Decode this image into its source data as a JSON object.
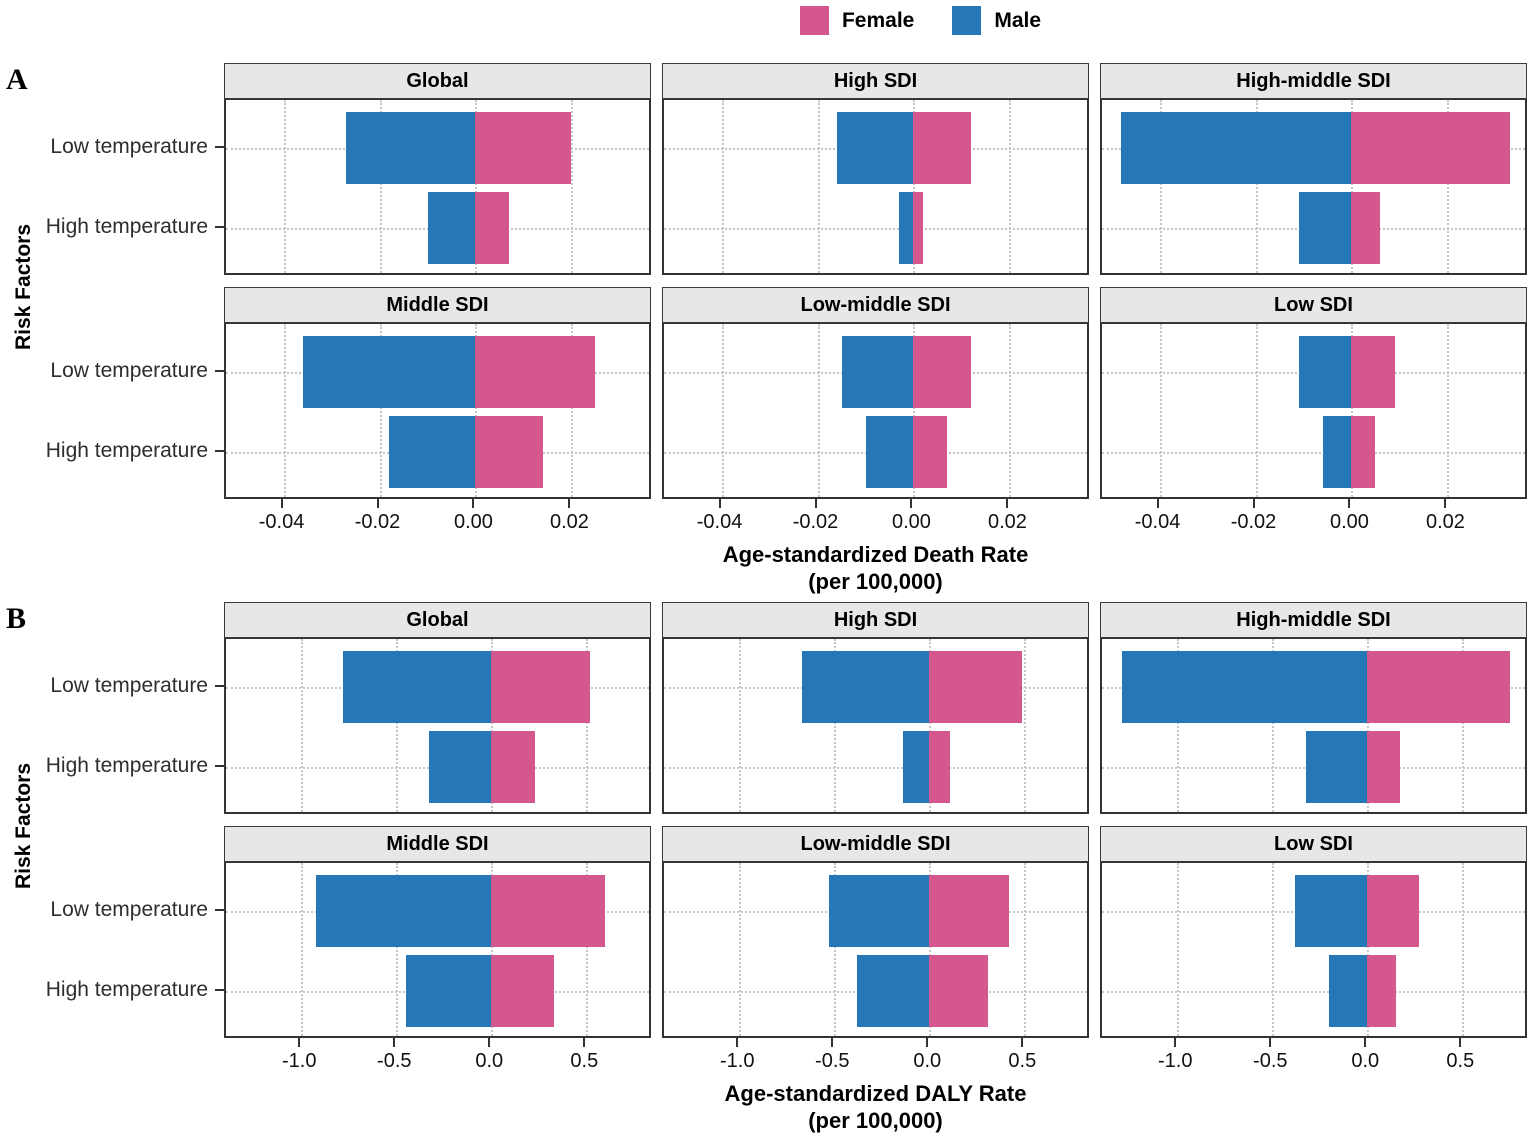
{
  "figure": {
    "background": "#ffffff",
    "legend": {
      "position": "top",
      "items": [
        {
          "label": "Female",
          "color": "#d4578d"
        },
        {
          "label": "Male",
          "color": "#2577b7"
        }
      ]
    }
  },
  "chart_data": [
    {
      "type": "bar",
      "orientation": "horizontal-diverging",
      "panel_letter": "A",
      "ylabel": "Risk Factors",
      "xlabel": [
        "Age-standardized Death Rate",
        "(per 100,000)"
      ],
      "categories": [
        "Low temperature",
        "High temperature"
      ],
      "xlim": [
        -0.052,
        0.037
      ],
      "grid": "dotted",
      "legend_position": "top",
      "xticks": [
        {
          "value": -0.04,
          "label": "-0.04"
        },
        {
          "value": -0.02,
          "label": "-0.02"
        },
        {
          "value": 0.0,
          "label": "0.00"
        },
        {
          "value": 0.02,
          "label": "0.02"
        }
      ],
      "facets": [
        {
          "title": "Global",
          "series": [
            {
              "name": "Male",
              "values": [
                -0.027,
                -0.01
              ]
            },
            {
              "name": "Female",
              "values": [
                0.02,
                0.007
              ]
            }
          ]
        },
        {
          "title": "High SDI",
          "series": [
            {
              "name": "Male",
              "values": [
                -0.016,
                -0.003
              ]
            },
            {
              "name": "Female",
              "values": [
                0.012,
                0.002
              ]
            }
          ]
        },
        {
          "title": "High-middle SDI",
          "series": [
            {
              "name": "Male",
              "values": [
                -0.048,
                -0.011
              ]
            },
            {
              "name": "Female",
              "values": [
                0.033,
                0.006
              ]
            }
          ]
        },
        {
          "title": "Middle SDI",
          "series": [
            {
              "name": "Male",
              "values": [
                -0.036,
                -0.018
              ]
            },
            {
              "name": "Female",
              "values": [
                0.025,
                0.014
              ]
            }
          ]
        },
        {
          "title": "Low-middle SDI",
          "series": [
            {
              "name": "Male",
              "values": [
                -0.015,
                -0.01
              ]
            },
            {
              "name": "Female",
              "values": [
                0.012,
                0.007
              ]
            }
          ]
        },
        {
          "title": "Low SDI",
          "series": [
            {
              "name": "Male",
              "values": [
                -0.011,
                -0.006
              ]
            },
            {
              "name": "Female",
              "values": [
                0.009,
                0.005
              ]
            }
          ]
        }
      ]
    },
    {
      "type": "bar",
      "orientation": "horizontal-diverging",
      "panel_letter": "B",
      "ylabel": "Risk Factors",
      "xlabel": [
        "Age-standardized DALY Rate",
        "(per 100,000)"
      ],
      "categories": [
        "Low temperature",
        "High temperature"
      ],
      "xlim": [
        -1.396,
        0.851
      ],
      "grid": "dotted",
      "legend_position": "top",
      "xticks": [
        {
          "value": -1.0,
          "label": "-1.0"
        },
        {
          "value": -0.5,
          "label": "-0.5"
        },
        {
          "value": 0.0,
          "label": "0.0"
        },
        {
          "value": 0.5,
          "label": "0.5"
        }
      ],
      "facets": [
        {
          "title": "Global",
          "series": [
            {
              "name": "Male",
              "values": [
                -0.78,
                -0.33
              ]
            },
            {
              "name": "Female",
              "values": [
                0.52,
                0.23
              ]
            }
          ]
        },
        {
          "title": "High SDI",
          "series": [
            {
              "name": "Male",
              "values": [
                -0.67,
                -0.14
              ]
            },
            {
              "name": "Female",
              "values": [
                0.49,
                0.11
              ]
            }
          ]
        },
        {
          "title": "High-middle SDI",
          "series": [
            {
              "name": "Male",
              "values": [
                -1.29,
                -0.32
              ]
            },
            {
              "name": "Female",
              "values": [
                0.75,
                0.17
              ]
            }
          ]
        },
        {
          "title": "Middle SDI",
          "series": [
            {
              "name": "Male",
              "values": [
                -0.92,
                -0.45
              ]
            },
            {
              "name": "Female",
              "values": [
                0.6,
                0.33
              ]
            }
          ]
        },
        {
          "title": "Low-middle SDI",
          "series": [
            {
              "name": "Male",
              "values": [
                -0.53,
                -0.38
              ]
            },
            {
              "name": "Female",
              "values": [
                0.42,
                0.31
              ]
            }
          ]
        },
        {
          "title": "Low SDI",
          "series": [
            {
              "name": "Male",
              "values": [
                -0.38,
                -0.2
              ]
            },
            {
              "name": "Female",
              "values": [
                0.27,
                0.15
              ]
            }
          ]
        }
      ]
    }
  ]
}
